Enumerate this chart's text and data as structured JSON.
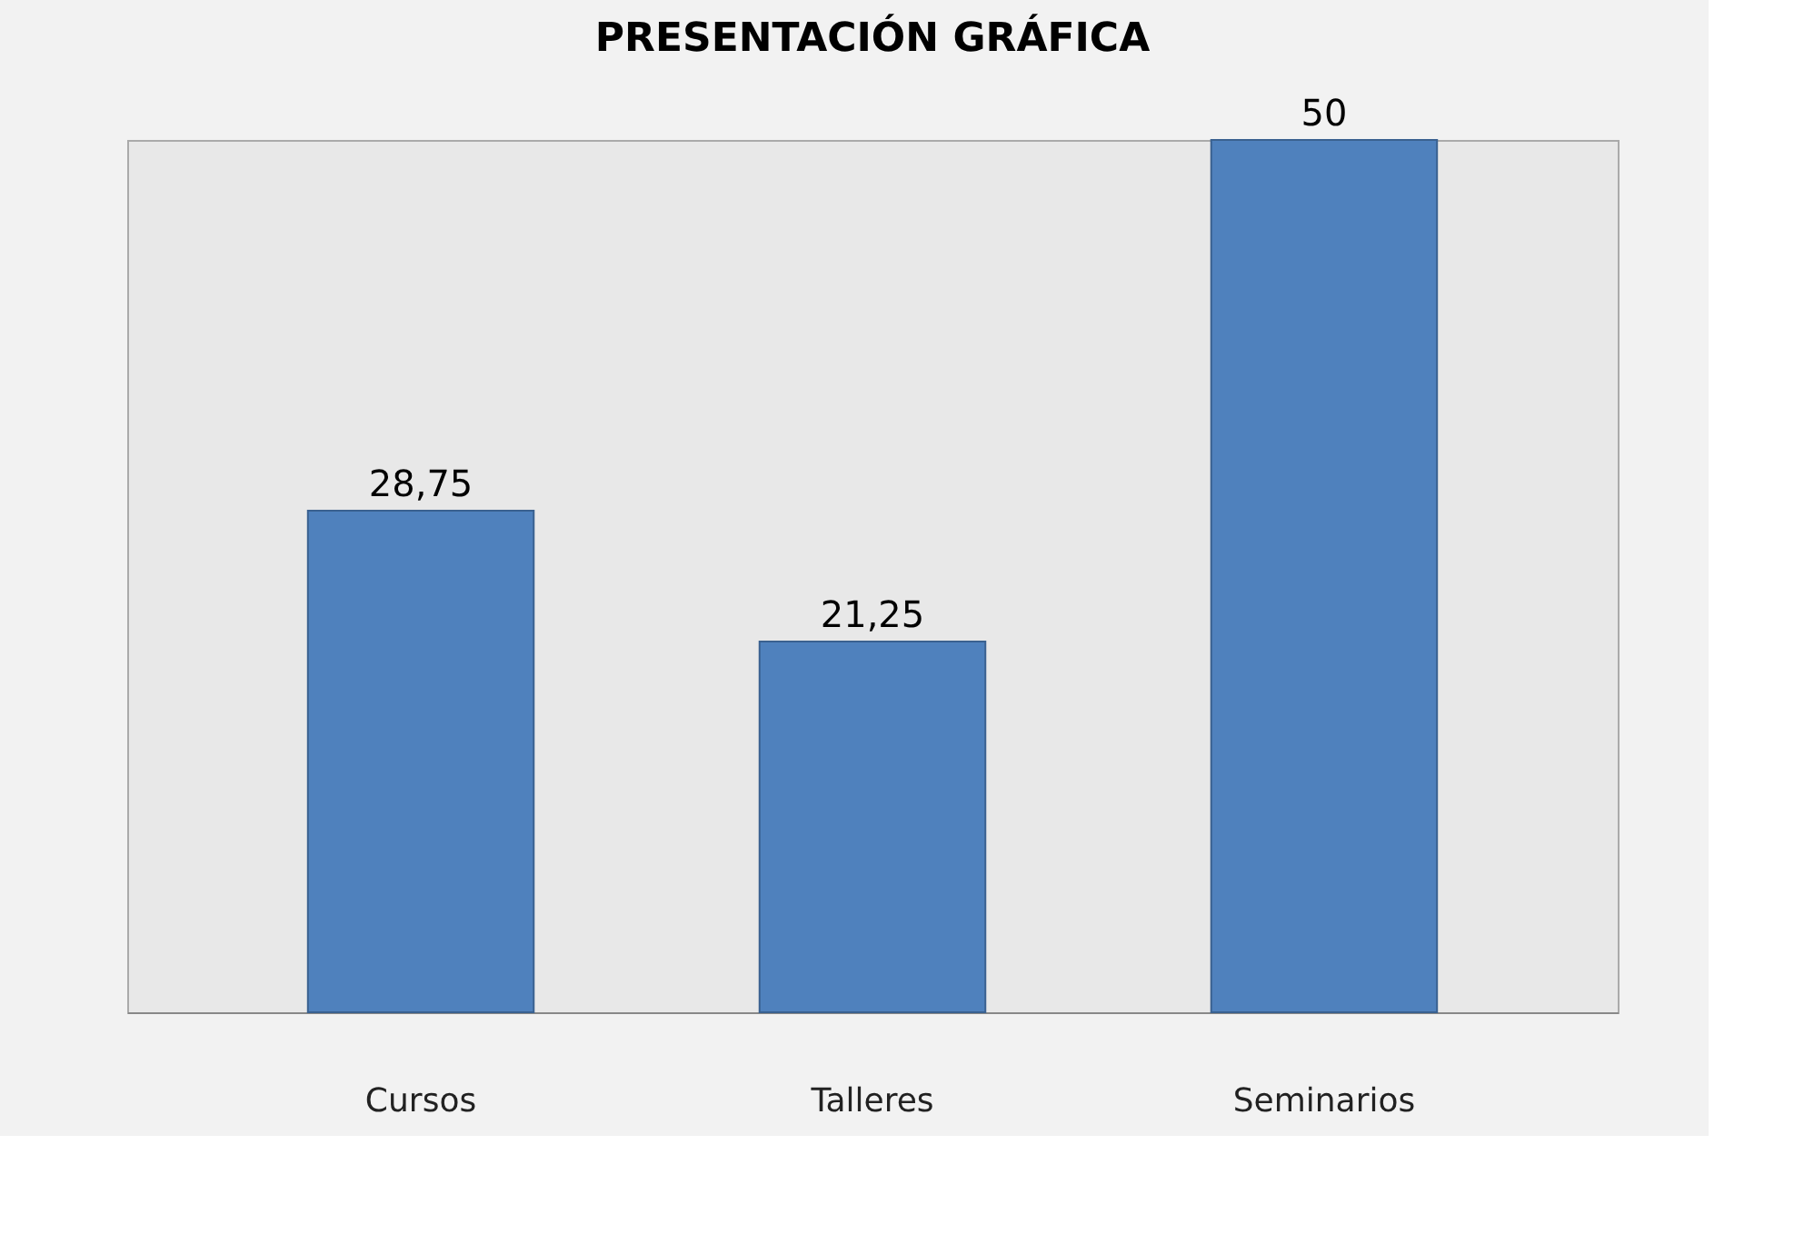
{
  "chart_data": {
    "type": "bar",
    "title": "PRESENTACIÓN GRÁFICA",
    "categories": [
      "Cursos",
      "Talleres",
      "Seminarios"
    ],
    "values": [
      28.75,
      21.25,
      50
    ],
    "value_labels": [
      "28,75",
      "21,25",
      "50"
    ],
    "color": "#4f81bd",
    "grid": false
  }
}
